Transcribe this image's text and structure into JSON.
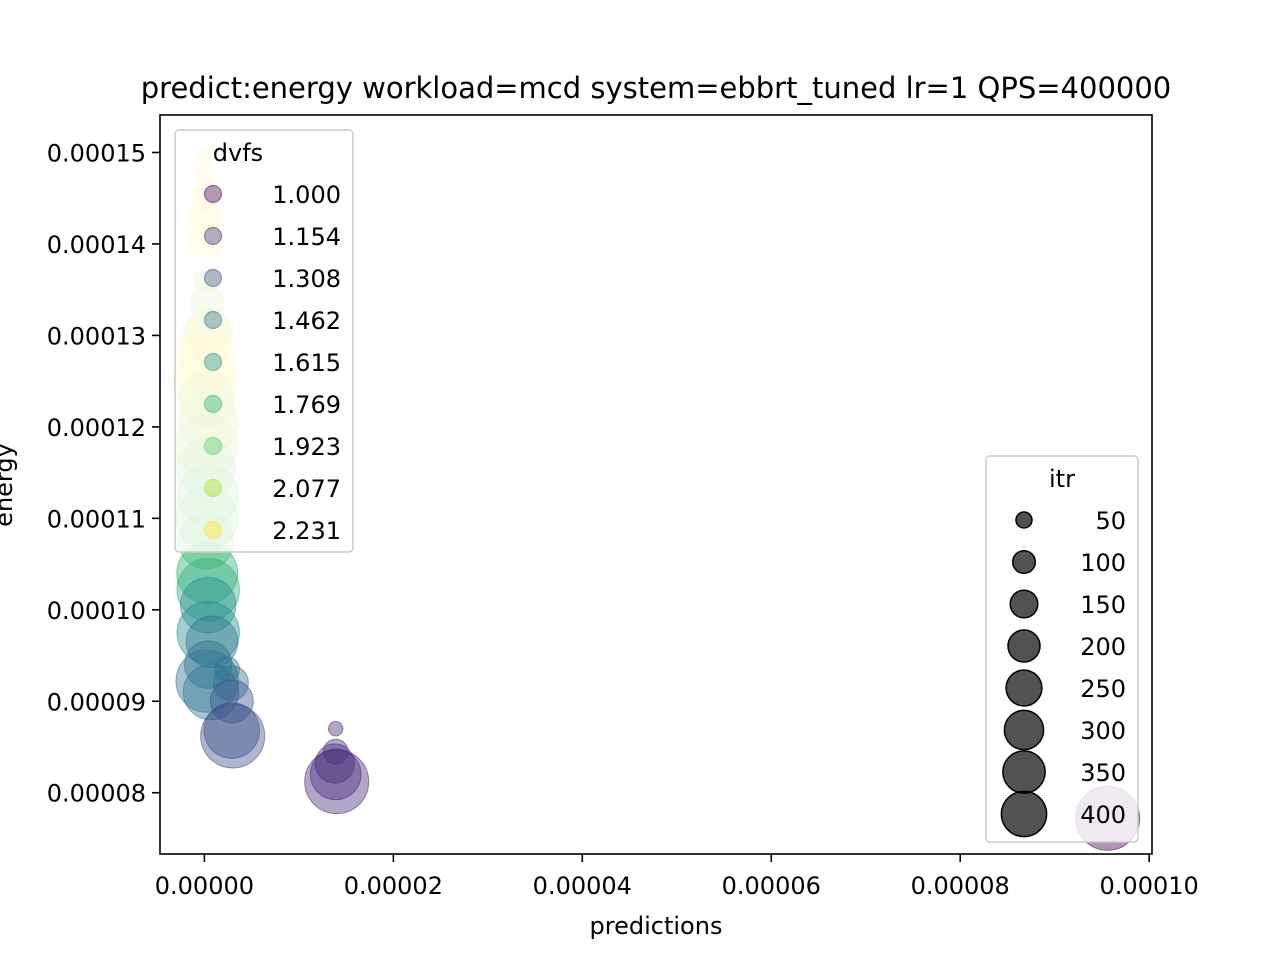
{
  "chart_data": {
    "type": "scatter",
    "title": "predict:energy workload=mcd system=ebbrt_tuned lr=1 QPS=400000",
    "xlabel": "predictions",
    "ylabel": "energy",
    "xlim": [
      -4.7e-06,
      0.0001003
    ],
    "ylim": [
      7.33e-05,
      0.0001541
    ],
    "x_ticks": [
      "0.00000",
      "0.00002",
      "0.00004",
      "0.00006",
      "0.00008",
      "0.00010"
    ],
    "x_tick_values": [
      0,
      2e-05,
      4e-05,
      6e-05,
      8e-05,
      0.0001
    ],
    "y_ticks": [
      "0.00008",
      "0.00009",
      "0.00010",
      "0.00011",
      "0.00012",
      "0.00013",
      "0.00014",
      "0.00015"
    ],
    "y_tick_values": [
      8e-05,
      9e-05,
      0.0001,
      0.00011,
      0.00012,
      0.00013,
      0.00014,
      0.00015
    ],
    "grid": false,
    "color_legend": {
      "title": "dvfs",
      "placement": "upper-left",
      "entries": [
        {
          "label": "1.000",
          "color": "#440154"
        },
        {
          "label": "1.154",
          "color": "#472d7b"
        },
        {
          "label": "1.308",
          "color": "#3b528b"
        },
        {
          "label": "1.462",
          "color": "#2c728e"
        },
        {
          "label": "1.615",
          "color": "#21918c"
        },
        {
          "label": "1.769",
          "color": "#28ae80"
        },
        {
          "label": "1.923",
          "color": "#5ec962"
        },
        {
          "label": "2.077",
          "color": "#addc30"
        },
        {
          "label": "2.231",
          "color": "#fde725"
        }
      ]
    },
    "size_legend": {
      "title": "itr",
      "placement": "lower-right",
      "entries": [
        {
          "label": "50",
          "value": 50
        },
        {
          "label": "100",
          "value": 100
        },
        {
          "label": "150",
          "value": 150
        },
        {
          "label": "200",
          "value": 200
        },
        {
          "label": "250",
          "value": 250
        },
        {
          "label": "300",
          "value": 300
        },
        {
          "label": "350",
          "value": 350
        },
        {
          "label": "400",
          "value": 400
        }
      ]
    },
    "points": [
      {
        "x": 1e-07,
        "y": 0.0001495,
        "dvfs": 2.231,
        "itr": 20
      },
      {
        "x": 1e-07,
        "y": 0.0001475,
        "dvfs": 2.231,
        "itr": 40
      },
      {
        "x": 1e-07,
        "y": 0.000145,
        "dvfs": 2.231,
        "itr": 70
      },
      {
        "x": 1e-07,
        "y": 0.000143,
        "dvfs": 2.231,
        "itr": 90
      },
      {
        "x": 1e-07,
        "y": 0.0001405,
        "dvfs": 2.231,
        "itr": 120
      },
      {
        "x": 3e-07,
        "y": 0.000136,
        "dvfs": 2.077,
        "itr": 60
      },
      {
        "x": 3e-07,
        "y": 0.0001335,
        "dvfs": 2.077,
        "itr": 110
      },
      {
        "x": 4e-07,
        "y": 0.0001305,
        "dvfs": 2.077,
        "itr": 200
      },
      {
        "x": 2e-07,
        "y": 0.0001295,
        "dvfs": 2.231,
        "itr": 260
      },
      {
        "x": 2e-07,
        "y": 0.000127,
        "dvfs": 2.231,
        "itr": 320
      },
      {
        "x": 1e-07,
        "y": 0.000125,
        "dvfs": 2.231,
        "itr": 380
      },
      {
        "x": 3e-07,
        "y": 0.000123,
        "dvfs": 2.077,
        "itr": 300
      },
      {
        "x": 4e-07,
        "y": 0.0001205,
        "dvfs": 2.077,
        "itr": 350
      },
      {
        "x": 2e-07,
        "y": 0.000118,
        "dvfs": 2.077,
        "itr": 380
      },
      {
        "x": 2e-07,
        "y": 0.0001155,
        "dvfs": 1.923,
        "itr": 330
      },
      {
        "x": 4e-07,
        "y": 0.0001125,
        "dvfs": 1.923,
        "itr": 360
      },
      {
        "x": 3e-07,
        "y": 0.00011,
        "dvfs": 1.923,
        "itr": 380
      },
      {
        "x": 2e-07,
        "y": 0.0001075,
        "dvfs": 1.923,
        "itr": 300
      },
      {
        "x": 3e-07,
        "y": 0.000104,
        "dvfs": 1.769,
        "itr": 360
      },
      {
        "x": 4e-07,
        "y": 0.0001022,
        "dvfs": 1.769,
        "itr": 380
      },
      {
        "x": 4e-07,
        "y": 0.0001005,
        "dvfs": 1.615,
        "itr": 300
      },
      {
        "x": 4e-07,
        "y": 9.75e-05,
        "dvfs": 1.615,
        "itr": 380
      },
      {
        "x": 8e-07,
        "y": 9.65e-05,
        "dvfs": 1.462,
        "itr": 260
      },
      {
        "x": 4e-07,
        "y": 9.4e-05,
        "dvfs": 1.462,
        "itr": 220
      },
      {
        "x": 3e-07,
        "y": 9.22e-05,
        "dvfs": 1.462,
        "itr": 380
      },
      {
        "x": 7e-07,
        "y": 9.1e-05,
        "dvfs": 1.462,
        "itr": 300
      },
      {
        "x": 2.4e-06,
        "y": 9.35e-05,
        "dvfs": 1.462,
        "itr": 60
      },
      {
        "x": 2.8e-06,
        "y": 9.2e-05,
        "dvfs": 1.462,
        "itr": 120
      },
      {
        "x": 2.9e-06,
        "y": 9e-05,
        "dvfs": 1.308,
        "itr": 180
      },
      {
        "x": 2.9e-06,
        "y": 8.68e-05,
        "dvfs": 1.308,
        "itr": 300
      },
      {
        "x": 3e-06,
        "y": 8.62e-05,
        "dvfs": 1.308,
        "itr": 400
      },
      {
        "x": 1.39e-05,
        "y": 8.7e-05,
        "dvfs": 1.154,
        "itr": 20
      },
      {
        "x": 1.39e-05,
        "y": 8.45e-05,
        "dvfs": 1.154,
        "itr": 60
      },
      {
        "x": 1.38e-05,
        "y": 8.32e-05,
        "dvfs": 1.154,
        "itr": 150
      },
      {
        "x": 1.39e-05,
        "y": 8.2e-05,
        "dvfs": 1.154,
        "itr": 250
      },
      {
        "x": 1.4e-05,
        "y": 8.12e-05,
        "dvfs": 1.154,
        "itr": 400
      },
      {
        "x": 9.56e-05,
        "y": 7.72e-05,
        "dvfs": 1.0,
        "itr": 400
      }
    ]
  }
}
